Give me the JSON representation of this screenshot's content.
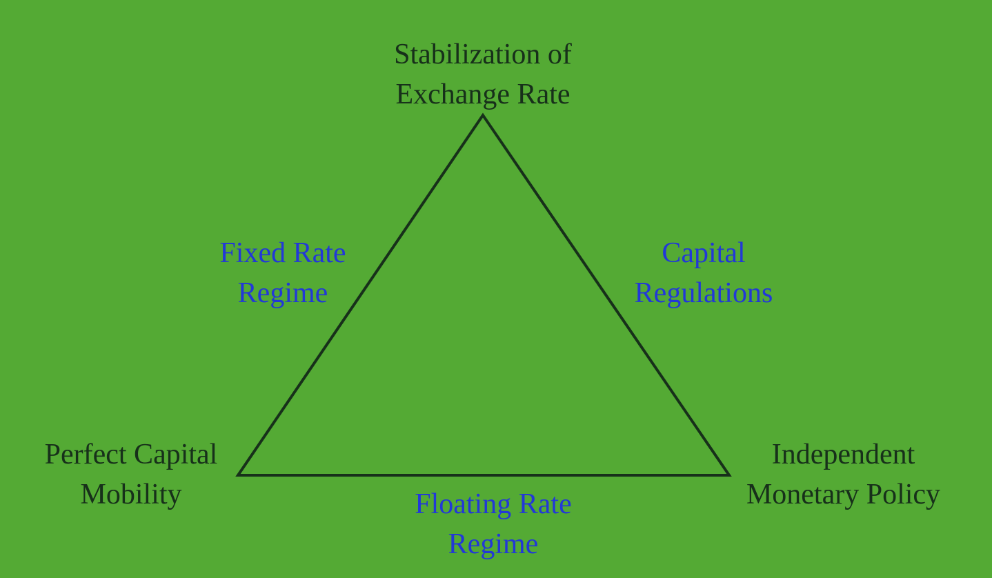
{
  "colors": {
    "background": "#54aa34",
    "triangle_stroke": "#17301a",
    "vertex_text": "#17301a",
    "edge_text": "#2238d8"
  },
  "vertices": {
    "top": {
      "line1": "Stabilization of",
      "line2": "Exchange Rate"
    },
    "bottom_left": {
      "line1": "Perfect Capital",
      "line2": "Mobility"
    },
    "bottom_right": {
      "line1": "Independent",
      "line2": "Monetary Policy"
    }
  },
  "edges": {
    "left": {
      "line1": "Fixed Rate",
      "line2": "Regime"
    },
    "right": {
      "line1": "Capital",
      "line2": "Regulations"
    },
    "bottom": {
      "line1": "Floating Rate",
      "line2": "Regime"
    }
  }
}
